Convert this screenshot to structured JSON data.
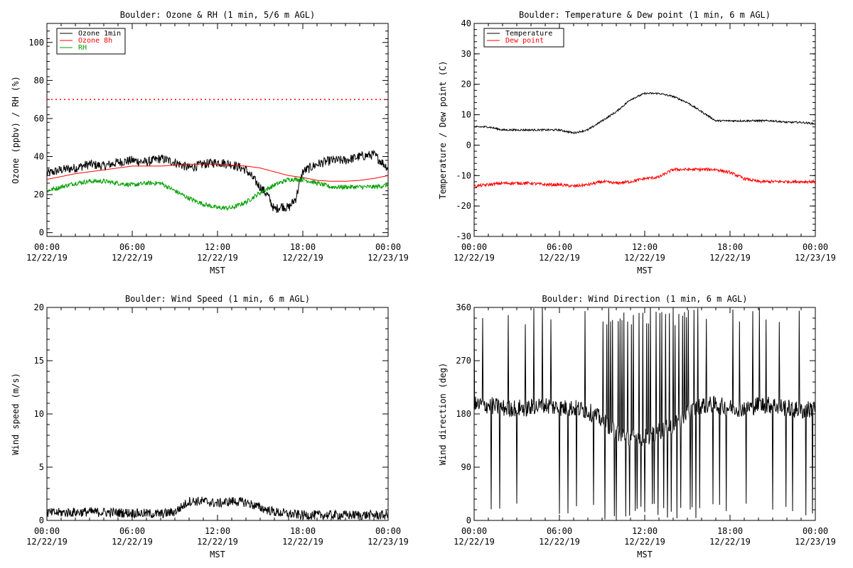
{
  "chart_data": [
    {
      "type": "line",
      "title": "Boulder: Ozone & RH (1 min, 5/6 m AGL)",
      "xlabel": "MST",
      "ylabel": "Ozone (ppbv) / RH (%)",
      "xlim": [
        "00:00 12/22/19",
        "00:00 12/23/19"
      ],
      "xticks": [
        {
          "time": "00:00",
          "date": "12/22/19"
        },
        {
          "time": "06:00",
          "date": "12/22/19"
        },
        {
          "time": "12:00",
          "date": "12/22/19"
        },
        {
          "time": "18:00",
          "date": "12/22/19"
        },
        {
          "time": "00:00",
          "date": "12/23/19"
        }
      ],
      "ylim": [
        -2,
        110
      ],
      "yticks": [
        0,
        20,
        40,
        60,
        80,
        100
      ],
      "legend": {
        "position": "top-left",
        "entries": [
          {
            "label": "Ozone 1min",
            "color": "#000000"
          },
          {
            "label": "Ozone 8h",
            "color": "#ff0000"
          },
          {
            "label": "RH",
            "color": "#00a000"
          }
        ]
      },
      "reference_lines": [
        {
          "y": 70,
          "color": "#ff0000",
          "style": "dotted"
        }
      ],
      "series": [
        {
          "name": "Ozone 1min",
          "color": "#000000",
          "noise": 2.5,
          "x": [
            0,
            1,
            2,
            3,
            4,
            5,
            6,
            7,
            8,
            9,
            10,
            11,
            12,
            13,
            14,
            15,
            15.5,
            16,
            16.5,
            17,
            17.5,
            18,
            19,
            20,
            21,
            22,
            23,
            24
          ],
          "values": [
            31,
            33,
            34,
            36,
            35,
            37,
            38,
            37,
            39,
            37,
            34,
            36,
            37,
            36,
            33,
            24,
            20,
            12,
            14,
            13,
            18,
            32,
            36,
            38,
            38,
            40,
            41,
            34
          ]
        },
        {
          "name": "Ozone 8h",
          "color": "#ff0000",
          "noise": 0,
          "x": [
            0,
            2,
            4,
            6,
            8,
            10,
            12,
            13,
            14,
            15,
            16,
            17,
            18,
            19,
            20,
            21,
            22,
            23,
            24
          ],
          "values": [
            28,
            31,
            33,
            35,
            35,
            36,
            36,
            35.5,
            35,
            34,
            32,
            30,
            29,
            27.5,
            27,
            27,
            27.5,
            28.5,
            30
          ]
        },
        {
          "name": "RH",
          "color": "#00a000",
          "noise": 1.2,
          "x": [
            0,
            1,
            2,
            3,
            4,
            5,
            6,
            7,
            8,
            9,
            10,
            11,
            12,
            13,
            14,
            15,
            16,
            17,
            18,
            19,
            20,
            21,
            22,
            23,
            24
          ],
          "values": [
            22,
            24,
            26,
            27,
            27,
            26,
            25,
            26,
            26,
            22,
            18,
            15,
            13,
            13,
            16,
            21,
            25,
            28,
            28,
            26,
            24,
            24,
            24,
            24,
            25
          ]
        }
      ]
    },
    {
      "type": "line",
      "title": "Boulder: Temperature & Dew point (1 min, 6 m AGL)",
      "xlabel": "MST",
      "ylabel": "Temperature / Dew point (C)",
      "xlim": [
        "00:00 12/22/19",
        "00:00 12/23/19"
      ],
      "xticks": [
        {
          "time": "00:00",
          "date": "12/22/19"
        },
        {
          "time": "06:00",
          "date": "12/22/19"
        },
        {
          "time": "12:00",
          "date": "12/22/19"
        },
        {
          "time": "18:00",
          "date": "12/22/19"
        },
        {
          "time": "00:00",
          "date": "12/23/19"
        }
      ],
      "ylim": [
        -30,
        40
      ],
      "yticks": [
        -30,
        -20,
        -10,
        0,
        10,
        20,
        30,
        40
      ],
      "legend": {
        "position": "top-left",
        "entries": [
          {
            "label": "Temperature",
            "color": "#000000"
          },
          {
            "label": "Dew point",
            "color": "#ff0000"
          }
        ]
      },
      "series": [
        {
          "name": "Temperature",
          "color": "#000000",
          "noise": 0.3,
          "x": [
            0,
            1,
            2,
            3,
            4,
            5,
            6,
            7,
            8,
            9,
            10,
            11,
            12,
            13,
            14,
            15,
            16,
            17,
            18,
            19,
            20,
            21,
            22,
            23,
            24
          ],
          "values": [
            6,
            6,
            5,
            5,
            5,
            5,
            5,
            4,
            5,
            8,
            11,
            15,
            17,
            17,
            16,
            14,
            11,
            8,
            8,
            8,
            8,
            8,
            7.5,
            7.5,
            7
          ]
        },
        {
          "name": "Dew point",
          "color": "#ff0000",
          "noise": 0.5,
          "x": [
            0,
            1,
            2,
            3,
            4,
            5,
            6,
            7,
            8,
            9,
            10,
            11,
            12,
            13,
            14,
            15,
            16,
            17,
            18,
            19,
            20,
            21,
            22,
            23,
            24
          ],
          "values": [
            -13.5,
            -13,
            -12.5,
            -12.5,
            -12.5,
            -13,
            -13,
            -13.5,
            -13,
            -12,
            -12.5,
            -12,
            -11,
            -10.5,
            -8,
            -8,
            -8,
            -8,
            -9,
            -11,
            -12,
            -12,
            -12,
            -12,
            -12
          ]
        }
      ]
    },
    {
      "type": "line",
      "title": "Boulder: Wind Speed (1 min, 6 m AGL)",
      "xlabel": "MST",
      "ylabel": "Wind speed (m/s)",
      "xlim": [
        "00:00 12/22/19",
        "00:00 12/23/19"
      ],
      "xticks": [
        {
          "time": "00:00",
          "date": "12/22/19"
        },
        {
          "time": "06:00",
          "date": "12/22/19"
        },
        {
          "time": "12:00",
          "date": "12/22/19"
        },
        {
          "time": "18:00",
          "date": "12/22/19"
        },
        {
          "time": "00:00",
          "date": "12/23/19"
        }
      ],
      "ylim": [
        0,
        20
      ],
      "yticks": [
        0,
        5,
        10,
        15,
        20
      ],
      "series": [
        {
          "name": "",
          "color": "#000000",
          "noise": 0.45,
          "floor": 0,
          "x": [
            0,
            3,
            6,
            8,
            9,
            10,
            11,
            12,
            13,
            14,
            15,
            16,
            17,
            18,
            20,
            24
          ],
          "values": [
            0.7,
            0.8,
            0.7,
            0.6,
            0.8,
            1.8,
            1.8,
            1.6,
            1.8,
            1.7,
            1.2,
            0.8,
            0.6,
            0.5,
            0.5,
            0.5
          ]
        }
      ]
    },
    {
      "type": "line",
      "title": "Boulder: Wind Direction (1 min, 6 m AGL)",
      "xlabel": "MST",
      "ylabel": "Wind direction (deg)",
      "xlim": [
        "00:00 12/22/19",
        "00:00 12/23/19"
      ],
      "xticks": [
        {
          "time": "00:00",
          "date": "12/22/19"
        },
        {
          "time": "06:00",
          "date": "12/22/19"
        },
        {
          "time": "12:00",
          "date": "12/22/19"
        },
        {
          "time": "18:00",
          "date": "12/22/19"
        },
        {
          "time": "00:00",
          "date": "12/23/19"
        }
      ],
      "ylim": [
        0,
        360
      ],
      "yticks": [
        0,
        90,
        180,
        270,
        360
      ],
      "series": [
        {
          "name": "",
          "color": "#000000",
          "noise": 15,
          "floor": 0,
          "ceil": 360,
          "spikes": [
            {
              "from": 0,
              "to": 9,
              "every": 18
            },
            {
              "from": 9,
              "to": 16,
              "every": 4
            },
            {
              "from": 16,
              "to": 24,
              "every": 14
            }
          ],
          "x": [
            0,
            1,
            2,
            3,
            4,
            5,
            6,
            7,
            8,
            9,
            10,
            11,
            12,
            13,
            14,
            15,
            16,
            17,
            18,
            19,
            20,
            21,
            22,
            23,
            24
          ],
          "values": [
            195,
            195,
            190,
            190,
            190,
            195,
            190,
            190,
            185,
            170,
            150,
            140,
            140,
            150,
            160,
            180,
            195,
            195,
            190,
            190,
            195,
            195,
            190,
            185,
            190
          ]
        }
      ]
    }
  ]
}
